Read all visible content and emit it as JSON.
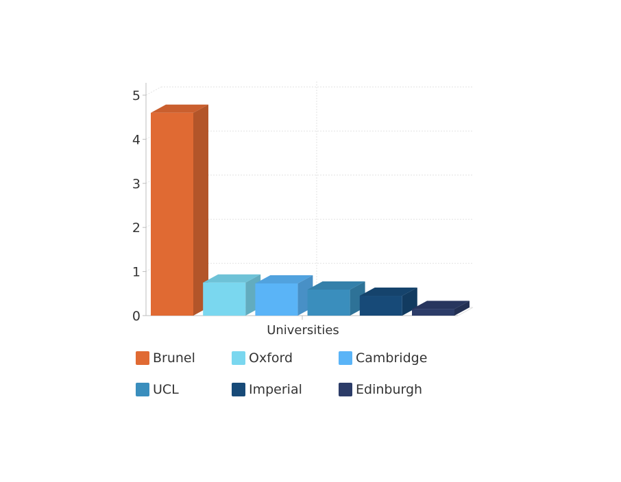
{
  "chart_data": {
    "type": "bar",
    "xlabel": "Universities",
    "ylabel": "",
    "ylim": [
      0,
      5
    ],
    "yticks": [
      "0",
      "1",
      "2",
      "3",
      "4",
      "5"
    ],
    "grid": true,
    "style": "3d-column",
    "legend_position": "bottom",
    "series": [
      {
        "name": "Brunel",
        "value": 4.6,
        "color": "#e06a33"
      },
      {
        "name": "Oxford",
        "value": 0.75,
        "color": "#7ad7ef"
      },
      {
        "name": "Cambridge",
        "value": 0.73,
        "color": "#5ab4f7"
      },
      {
        "name": "UCL",
        "value": 0.59,
        "color": "#3a8ebd"
      },
      {
        "name": "Imperial",
        "value": 0.45,
        "color": "#174a78"
      },
      {
        "name": "Edinburgh",
        "value": 0.15,
        "color": "#2c3c68"
      }
    ]
  }
}
